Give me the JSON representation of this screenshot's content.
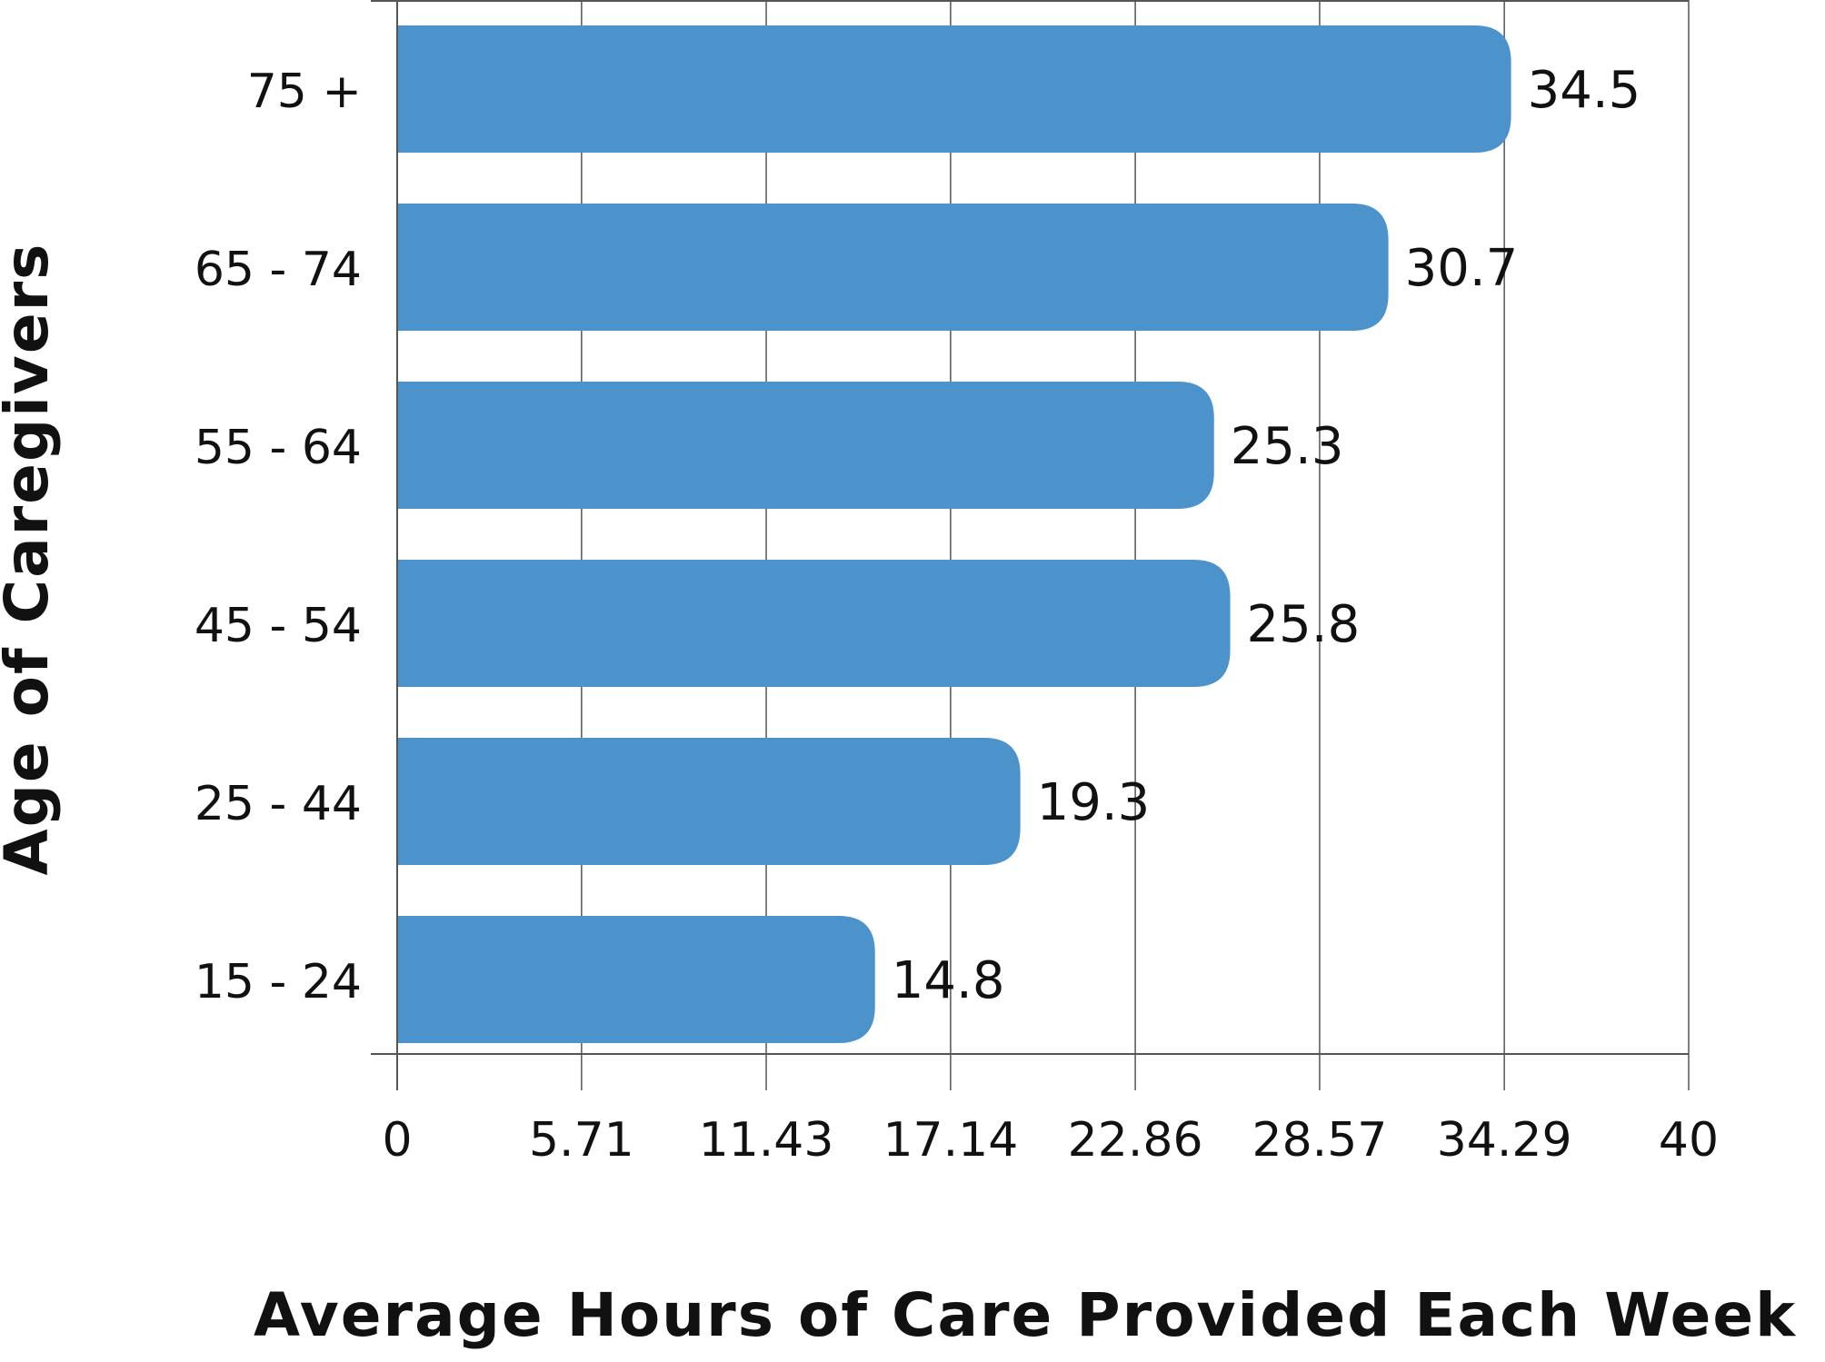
{
  "chart_data": {
    "type": "bar",
    "orientation": "horizontal",
    "categories": [
      "75 +",
      "65 - 74",
      "55 - 64",
      "45 - 54",
      "25 - 44",
      "15 - 24"
    ],
    "values": [
      34.5,
      30.7,
      25.3,
      25.8,
      19.3,
      14.8
    ],
    "value_labels": [
      "34.5",
      "30.7",
      "25.3",
      "25.8",
      "19.3",
      "14.8"
    ],
    "xlabel": "Average Hours of Care Provided Each Week",
    "ylabel": "Age of Caregivers",
    "xlim": [
      0,
      40
    ],
    "xticks": [
      0,
      5.71,
      11.43,
      17.14,
      22.86,
      28.57,
      34.29,
      40
    ],
    "xtick_labels": [
      "0",
      "5.71",
      "11.43",
      "17.14",
      "22.86",
      "28.57",
      "34.29",
      "40"
    ],
    "grid": true,
    "bar_color": "#4d93cb",
    "grid_color": "#555555",
    "text_color": "#111111"
  }
}
